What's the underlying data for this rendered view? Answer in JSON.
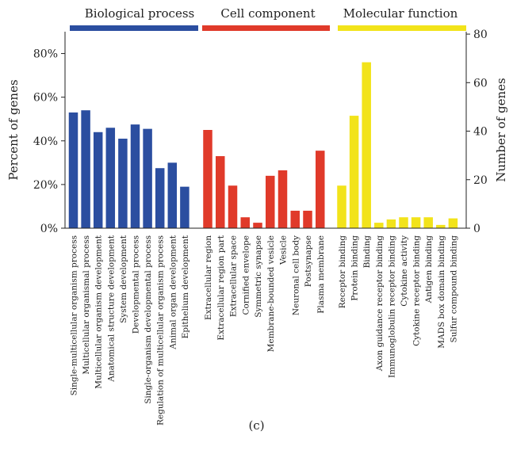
{
  "panel_label": "(c)",
  "chart_data": {
    "type": "bar",
    "ylabel_left": "Percent of genes",
    "ylabel_right": "Number of genes",
    "ylim_left_percent": [
      0,
      90
    ],
    "ylim_right_number": [
      0,
      81
    ],
    "left_ticks": [
      "0%",
      "20%",
      "40%",
      "60%",
      "80%"
    ],
    "right_ticks": [
      "0",
      "20",
      "40",
      "60",
      "80"
    ],
    "grid": false,
    "groups": [
      {
        "name": "Biological process",
        "color": "#2b4ea0",
        "categories": [
          "Single-multicellular organism process",
          "Multicellular organismal process",
          "Multicellular organism development",
          "Anatomical structure development",
          "System development",
          "Developmental process",
          "Single-organism developmental process",
          "Regulation of multicellular organism process",
          "Animal organ development",
          "Epithelium development"
        ],
        "values": [
          53,
          54,
          44,
          46,
          41,
          47.5,
          45.5,
          27.5,
          30,
          19
        ]
      },
      {
        "name": "Cell component",
        "color": "#e03a2a",
        "categories": [
          "Extracellular region",
          "Extracellular region part",
          "Extracellular space",
          "Cornified envelope",
          "Symmetric synapse",
          "Membrane-bounded vesicle",
          "Vesicle",
          "Neuronal cell body",
          "Postsynapse",
          "Plasma membrane"
        ],
        "values": [
          45,
          33,
          19.5,
          5,
          2.5,
          24,
          26.5,
          8,
          8,
          35.5
        ]
      },
      {
        "name": "Molecular function",
        "color": "#f2e31a",
        "categories": [
          "Receptor binding",
          "Protein binding",
          "Binding",
          "Axon guidance receptor binding",
          "Immunoglobulin receptor binding",
          "Cytokine activity",
          "Cytokine receptor binding",
          "Antigen binding",
          "MADS box domain binding",
          "Sulfur compound binding"
        ],
        "values": [
          19.5,
          51.5,
          76,
          2.5,
          4,
          5,
          5,
          5,
          1.5,
          4.5
        ]
      }
    ]
  }
}
